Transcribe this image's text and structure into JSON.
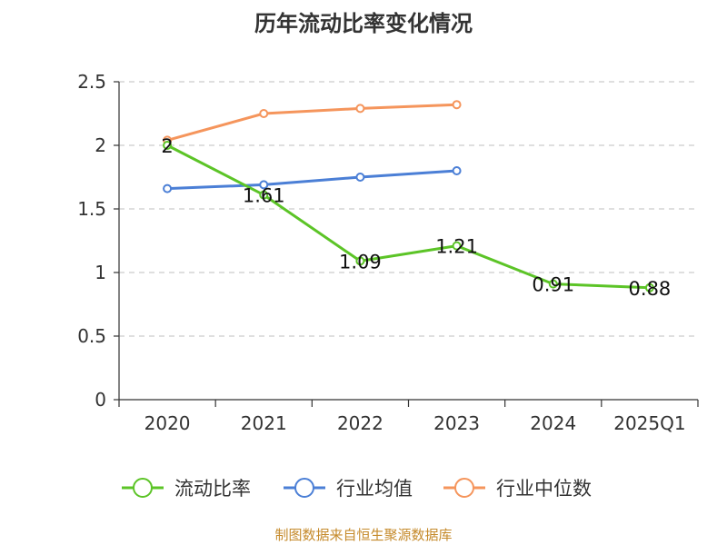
{
  "title": "历年流动比率变化情况",
  "source": "制图数据来自恒生聚源数据库",
  "chart_data": {
    "type": "line",
    "title": "历年流动比率变化情况",
    "categories": [
      "2020",
      "2021",
      "2022",
      "2023",
      "2024",
      "2025Q1"
    ],
    "ylim": [
      0,
      2.5
    ],
    "yticks": [
      "0",
      "0.5",
      "1",
      "1.5",
      "2",
      "2.5"
    ],
    "grid": true,
    "legend_position": "bottom",
    "series": [
      {
        "name": "流动比率",
        "color": "#5cc427",
        "values": [
          2.0,
          1.61,
          1.09,
          1.21,
          0.91,
          0.88
        ],
        "labels": [
          "2",
          "1.61",
          "1.09",
          "1.21",
          "0.91",
          "0.88"
        ]
      },
      {
        "name": "行业均值",
        "color": "#4b7fd6",
        "values": [
          1.66,
          1.69,
          1.75,
          1.8,
          null,
          null
        ]
      },
      {
        "name": "行业中位数",
        "color": "#f5955c",
        "values": [
          2.04,
          2.25,
          2.29,
          2.32,
          null,
          null
        ]
      }
    ]
  }
}
